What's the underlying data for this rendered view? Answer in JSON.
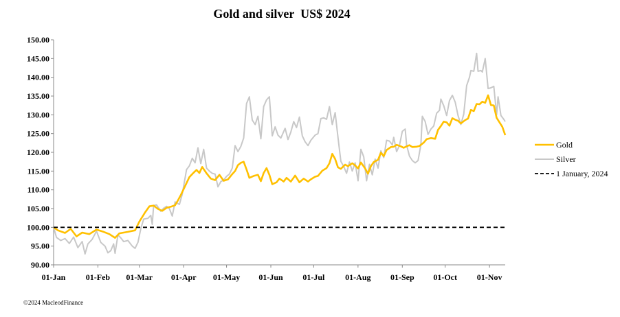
{
  "chart_data": {
    "type": "line",
    "title": "Gold and silver  US$ 2024",
    "xlabel": "",
    "ylabel": "",
    "ylim": [
      90,
      150
    ],
    "yticks": [
      "90.00",
      "95.00",
      "100.00",
      "105.00",
      "110.00",
      "115.00",
      "120.00",
      "125.00",
      "130.00",
      "135.00",
      "140.00",
      "145.00",
      "150.00"
    ],
    "x_range_days": [
      0,
      316
    ],
    "xticks": [
      {
        "label": "01-Jan",
        "day": 0
      },
      {
        "label": "01-Feb",
        "day": 31
      },
      {
        "label": "01-Mar",
        "day": 60
      },
      {
        "label": "01-Apr",
        "day": 91
      },
      {
        "label": "01-May",
        "day": 121
      },
      {
        "label": "01-Jun",
        "day": 152
      },
      {
        "label": "01-Jul",
        "day": 182
      },
      {
        "label": "01-Aug",
        "day": 213
      },
      {
        "label": "01-Sep",
        "day": 244
      },
      {
        "label": "01-Oct",
        "day": 274
      },
      {
        "label": "01-Nov",
        "day": 305
      }
    ],
    "series": [
      {
        "name": "Gold",
        "color": "#FFC000",
        "points": [
          [
            0,
            100
          ],
          [
            3,
            99.2
          ],
          [
            8,
            98.5
          ],
          [
            12,
            99.6
          ],
          [
            16,
            97.6
          ],
          [
            20,
            98.6
          ],
          [
            25,
            98.2
          ],
          [
            30,
            99.4
          ],
          [
            35,
            98.8
          ],
          [
            39,
            98.2
          ],
          [
            43,
            97.2
          ],
          [
            46,
            98.4
          ],
          [
            52,
            98.8
          ],
          [
            57,
            99.2
          ],
          [
            60,
            101.5
          ],
          [
            64,
            104.0
          ],
          [
            67,
            105.6
          ],
          [
            70,
            105.8
          ],
          [
            73,
            104.9
          ],
          [
            76,
            104.4
          ],
          [
            79,
            105.2
          ],
          [
            82,
            105.5
          ],
          [
            85,
            105.9
          ],
          [
            87,
            107.2
          ],
          [
            89,
            108.6
          ],
          [
            92,
            111.0
          ],
          [
            95,
            113.4
          ],
          [
            98,
            114.6
          ],
          [
            100,
            115.3
          ],
          [
            102,
            114.5
          ],
          [
            104,
            116.1
          ],
          [
            107,
            114.4
          ],
          [
            110,
            113.0
          ],
          [
            113,
            112.6
          ],
          [
            116,
            114.0
          ],
          [
            119,
            112.4
          ],
          [
            122,
            112.8
          ],
          [
            125,
            114.2
          ],
          [
            127,
            115.0
          ],
          [
            129,
            116.6
          ],
          [
            131,
            117.2
          ],
          [
            133,
            117.5
          ],
          [
            135,
            115.4
          ],
          [
            137,
            113.2
          ],
          [
            140,
            113.7
          ],
          [
            143,
            114.0
          ],
          [
            145,
            112.3
          ],
          [
            147,
            114.5
          ],
          [
            149,
            115.8
          ],
          [
            151,
            114.0
          ],
          [
            153,
            111.5
          ],
          [
            156,
            112.0
          ],
          [
            158,
            113.0
          ],
          [
            161,
            112.2
          ],
          [
            163,
            113.2
          ],
          [
            166,
            112.2
          ],
          [
            169,
            113.8
          ],
          [
            172,
            112.0
          ],
          [
            175,
            113.0
          ],
          [
            178,
            112.2
          ],
          [
            180,
            112.8
          ],
          [
            183,
            113.5
          ],
          [
            185,
            113.7
          ],
          [
            188,
            115.1
          ],
          [
            191,
            115.8
          ],
          [
            193,
            117.1
          ],
          [
            195,
            119.6
          ],
          [
            197,
            118.2
          ],
          [
            199,
            116.0
          ],
          [
            201,
            115.6
          ],
          [
            204,
            116.7
          ],
          [
            206,
            116.3
          ],
          [
            209,
            117.1
          ],
          [
            211,
            116.5
          ],
          [
            213,
            115.7
          ],
          [
            215,
            117.3
          ],
          [
            218,
            115.7
          ],
          [
            220,
            114.3
          ],
          [
            222,
            116.3
          ],
          [
            224,
            117.4
          ],
          [
            227,
            118.0
          ],
          [
            229,
            119.9
          ],
          [
            231,
            119.0
          ],
          [
            233,
            120.6
          ],
          [
            236,
            121.4
          ],
          [
            238,
            121.5
          ],
          [
            240,
            122.0
          ],
          [
            243,
            121.6
          ],
          [
            245,
            121.2
          ],
          [
            247,
            121.6
          ],
          [
            249,
            121.9
          ],
          [
            251,
            121.4
          ],
          [
            254,
            121.5
          ],
          [
            256,
            121.7
          ],
          [
            259,
            122.6
          ],
          [
            261,
            123.5
          ],
          [
            264,
            123.8
          ],
          [
            267,
            123.6
          ],
          [
            269,
            126.0
          ],
          [
            271,
            127.0
          ],
          [
            273,
            128.2
          ],
          [
            275,
            128.0
          ],
          [
            277,
            127.1
          ],
          [
            279,
            129.1
          ],
          [
            281,
            128.7
          ],
          [
            283,
            128.4
          ],
          [
            285,
            127.7
          ],
          [
            288,
            128.6
          ],
          [
            290,
            129.0
          ],
          [
            292,
            131.3
          ],
          [
            294,
            131.0
          ],
          [
            296,
            132.9
          ],
          [
            298,
            132.8
          ],
          [
            300,
            133.5
          ],
          [
            302,
            133.2
          ],
          [
            304,
            135.2
          ],
          [
            306,
            132.6
          ],
          [
            308,
            132.5
          ],
          [
            310,
            129.2
          ],
          [
            312,
            128.0
          ],
          [
            314,
            126.8
          ],
          [
            316,
            124.6
          ]
        ]
      },
      {
        "name": "Silver",
        "color": "#C8C8C8",
        "points": [
          [
            0,
            100
          ],
          [
            2,
            97.3
          ],
          [
            5,
            96.5
          ],
          [
            8,
            97.0
          ],
          [
            11,
            95.7
          ],
          [
            14,
            97.4
          ],
          [
            17,
            94.6
          ],
          [
            20,
            96.2
          ],
          [
            22,
            92.9
          ],
          [
            24,
            95.6
          ],
          [
            27,
            96.8
          ],
          [
            30,
            99.0
          ],
          [
            33,
            96.0
          ],
          [
            36,
            95.0
          ],
          [
            38,
            93.2
          ],
          [
            40,
            93.8
          ],
          [
            42,
            95.6
          ],
          [
            43,
            93.1
          ],
          [
            45,
            98.0
          ],
          [
            47,
            97.2
          ],
          [
            49,
            96.2
          ],
          [
            52,
            96.5
          ],
          [
            55,
            95.0
          ],
          [
            57,
            94.4
          ],
          [
            59,
            96.0
          ],
          [
            61,
            99.6
          ],
          [
            63,
            102.2
          ],
          [
            66,
            102.4
          ],
          [
            68,
            103.2
          ],
          [
            69,
            100.8
          ],
          [
            70,
            105.8
          ],
          [
            72,
            106.0
          ],
          [
            75,
            104.3
          ],
          [
            77,
            105.1
          ],
          [
            79,
            105.6
          ],
          [
            81,
            105.0
          ],
          [
            83,
            103.0
          ],
          [
            85,
            106.8
          ],
          [
            88,
            106.1
          ],
          [
            90,
            108.8
          ],
          [
            93,
            115.4
          ],
          [
            95,
            116.4
          ],
          [
            97,
            118.4
          ],
          [
            99,
            117.2
          ],
          [
            101,
            121.2
          ],
          [
            103,
            117.0
          ],
          [
            105,
            120.8
          ],
          [
            107,
            115.8
          ],
          [
            109,
            115.0
          ],
          [
            111,
            114.4
          ],
          [
            113,
            114.2
          ],
          [
            115,
            110.8
          ],
          [
            117,
            112.2
          ],
          [
            119,
            112.6
          ],
          [
            121,
            113.6
          ],
          [
            123,
            114.2
          ],
          [
            125,
            115.8
          ],
          [
            127,
            121.8
          ],
          [
            129,
            120.2
          ],
          [
            131,
            121.6
          ],
          [
            133,
            123.8
          ],
          [
            135,
            133.0
          ],
          [
            137,
            134.8
          ],
          [
            139,
            128.6
          ],
          [
            141,
            127.4
          ],
          [
            143,
            129.6
          ],
          [
            145,
            123.6
          ],
          [
            147,
            132.2
          ],
          [
            149,
            134.0
          ],
          [
            151,
            134.8
          ],
          [
            153,
            124.4
          ],
          [
            155,
            126.8
          ],
          [
            157,
            124.6
          ],
          [
            159,
            123.8
          ],
          [
            162,
            126.4
          ],
          [
            164,
            123.4
          ],
          [
            166,
            125.4
          ],
          [
            168,
            128.2
          ],
          [
            170,
            126.6
          ],
          [
            172,
            129.4
          ],
          [
            174,
            124.4
          ],
          [
            176,
            122.8
          ],
          [
            178,
            121.8
          ],
          [
            180,
            123.2
          ],
          [
            183,
            124.6
          ],
          [
            185,
            125.0
          ],
          [
            187,
            129.0
          ],
          [
            189,
            129.2
          ],
          [
            191,
            128.8
          ],
          [
            193,
            132.2
          ],
          [
            195,
            127.4
          ],
          [
            197,
            130.6
          ],
          [
            199,
            124.0
          ],
          [
            201,
            117.6
          ],
          [
            203,
            116.2
          ],
          [
            205,
            114.4
          ],
          [
            207,
            117.4
          ],
          [
            209,
            115.0
          ],
          [
            211,
            117.2
          ],
          [
            213,
            112.4
          ],
          [
            215,
            120.8
          ],
          [
            217,
            118.8
          ],
          [
            219,
            112.4
          ],
          [
            221,
            116.8
          ],
          [
            223,
            114.0
          ],
          [
            225,
            118.2
          ],
          [
            227,
            115.8
          ],
          [
            229,
            120.4
          ],
          [
            231,
            118.6
          ],
          [
            233,
            123.2
          ],
          [
            235,
            123.0
          ],
          [
            237,
            122.0
          ],
          [
            238,
            124.0
          ],
          [
            240,
            120.2
          ],
          [
            242,
            121.8
          ],
          [
            244,
            125.6
          ],
          [
            246,
            126.2
          ],
          [
            247,
            122.0
          ],
          [
            249,
            119.0
          ],
          [
            251,
            117.8
          ],
          [
            253,
            117.2
          ],
          [
            255,
            117.8
          ],
          [
            257,
            122.0
          ],
          [
            258,
            129.6
          ],
          [
            260,
            128.2
          ],
          [
            262,
            124.8
          ],
          [
            264,
            126.2
          ],
          [
            266,
            127.0
          ],
          [
            268,
            130.4
          ],
          [
            270,
            131.2
          ],
          [
            271,
            134.2
          ],
          [
            273,
            132.4
          ],
          [
            275,
            129.8
          ],
          [
            277,
            133.8
          ],
          [
            279,
            135.2
          ],
          [
            281,
            133.4
          ],
          [
            283,
            129.8
          ],
          [
            285,
            127.4
          ],
          [
            287,
            130.2
          ],
          [
            289,
            137.8
          ],
          [
            291,
            140.0
          ],
          [
            292,
            141.8
          ],
          [
            294,
            141.6
          ],
          [
            296,
            146.4
          ],
          [
            297,
            141.6
          ],
          [
            299,
            141.8
          ],
          [
            300,
            141.4
          ],
          [
            302,
            145.0
          ],
          [
            304,
            137.0
          ],
          [
            306,
            137.2
          ],
          [
            308,
            137.6
          ],
          [
            310,
            130.0
          ],
          [
            311,
            134.8
          ],
          [
            313,
            129.8
          ],
          [
            315,
            128.8
          ],
          [
            316,
            128.2
          ]
        ]
      },
      {
        "name": "1 January, 2024",
        "color": "#000000",
        "dashed": true,
        "points": [
          [
            0,
            100
          ],
          [
            316,
            100
          ]
        ]
      }
    ]
  },
  "footer": "©2024 MacleodFinance"
}
